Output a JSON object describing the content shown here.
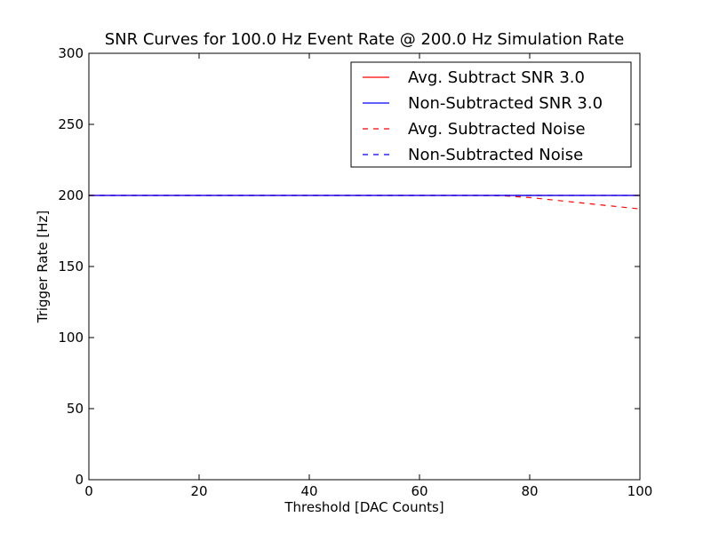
{
  "chart_data": {
    "type": "line",
    "title": "SNR Curves for 100.0 Hz Event Rate @ 200.0 Hz Simulation Rate",
    "xlabel": "Threshold [DAC Counts]",
    "ylabel": "Trigger Rate [Hz]",
    "xlim": [
      0,
      100
    ],
    "ylim": [
      0,
      300
    ],
    "xticks": [
      0,
      20,
      40,
      60,
      80,
      100
    ],
    "yticks": [
      0,
      50,
      100,
      150,
      200,
      250,
      300
    ],
    "grid": false,
    "legend_position": "top-right",
    "series": [
      {
        "name": "Avg. Subtract SNR 3.0",
        "color": "#ff0000",
        "style": "solid",
        "x": [
          0,
          100
        ],
        "y": [
          200,
          200
        ]
      },
      {
        "name": "Non-Subtracted SNR 3.0",
        "color": "#0000ff",
        "style": "solid",
        "x": [
          0,
          100
        ],
        "y": [
          200,
          200
        ]
      },
      {
        "name": "Avg. Subtracted Noise",
        "color": "#ff0000",
        "style": "dashed",
        "x": [
          0,
          10,
          20,
          30,
          40,
          50,
          60,
          70,
          75,
          80,
          85,
          90,
          95,
          100
        ],
        "y": [
          200,
          200,
          200,
          200,
          200,
          200,
          200,
          200,
          199.8,
          198.5,
          196.5,
          194.5,
          192.5,
          190.5
        ]
      },
      {
        "name": "Non-Subtracted Noise",
        "color": "#0000ff",
        "style": "dashed",
        "x": [
          0,
          100
        ],
        "y": [
          200,
          200
        ]
      }
    ]
  }
}
